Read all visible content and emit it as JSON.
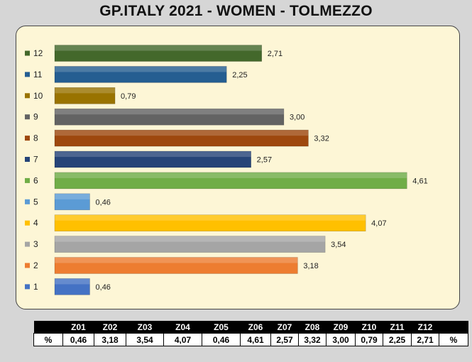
{
  "title": "GP.ITALY 2021 - WOMEN - TOLMEZZO",
  "chart_data": {
    "type": "bar",
    "orientation": "horizontal",
    "title": "GP.ITALY 2021 - WOMEN - TOLMEZZO",
    "categories": [
      "1",
      "2",
      "3",
      "4",
      "5",
      "6",
      "7",
      "8",
      "9",
      "10",
      "11",
      "12"
    ],
    "values": [
      0.46,
      3.18,
      3.54,
      4.07,
      0.46,
      4.61,
      2.57,
      3.32,
      3.0,
      0.79,
      2.25,
      2.71
    ],
    "value_labels": [
      "0,46",
      "3,18",
      "3,54",
      "4,07",
      "0,46",
      "4,61",
      "2,57",
      "3,32",
      "3,00",
      "0,79",
      "2,25",
      "2,71"
    ],
    "colors": [
      "#4472c4",
      "#ed7d31",
      "#a5a5a5",
      "#ffc000",
      "#5b9bd5",
      "#70ad47",
      "#264478",
      "#9e480e",
      "#636363",
      "#997300",
      "#255e91",
      "#43682b"
    ],
    "xlim": [
      0,
      4.7
    ],
    "grid": false,
    "legend": "left"
  },
  "table": {
    "row_label": "%",
    "unit_label": "%",
    "headers": [
      "Z01",
      "Z02",
      "Z03",
      "Z04",
      "Z05",
      "Z06",
      "Z07",
      "Z08",
      "Z09",
      "Z10",
      "Z11",
      "Z12"
    ],
    "values": [
      "0,46",
      "3,18",
      "3,54",
      "4,07",
      "0,46",
      "4,61",
      "2,57",
      "3,32",
      "3,00",
      "0,79",
      "2,25",
      "2,71"
    ]
  }
}
